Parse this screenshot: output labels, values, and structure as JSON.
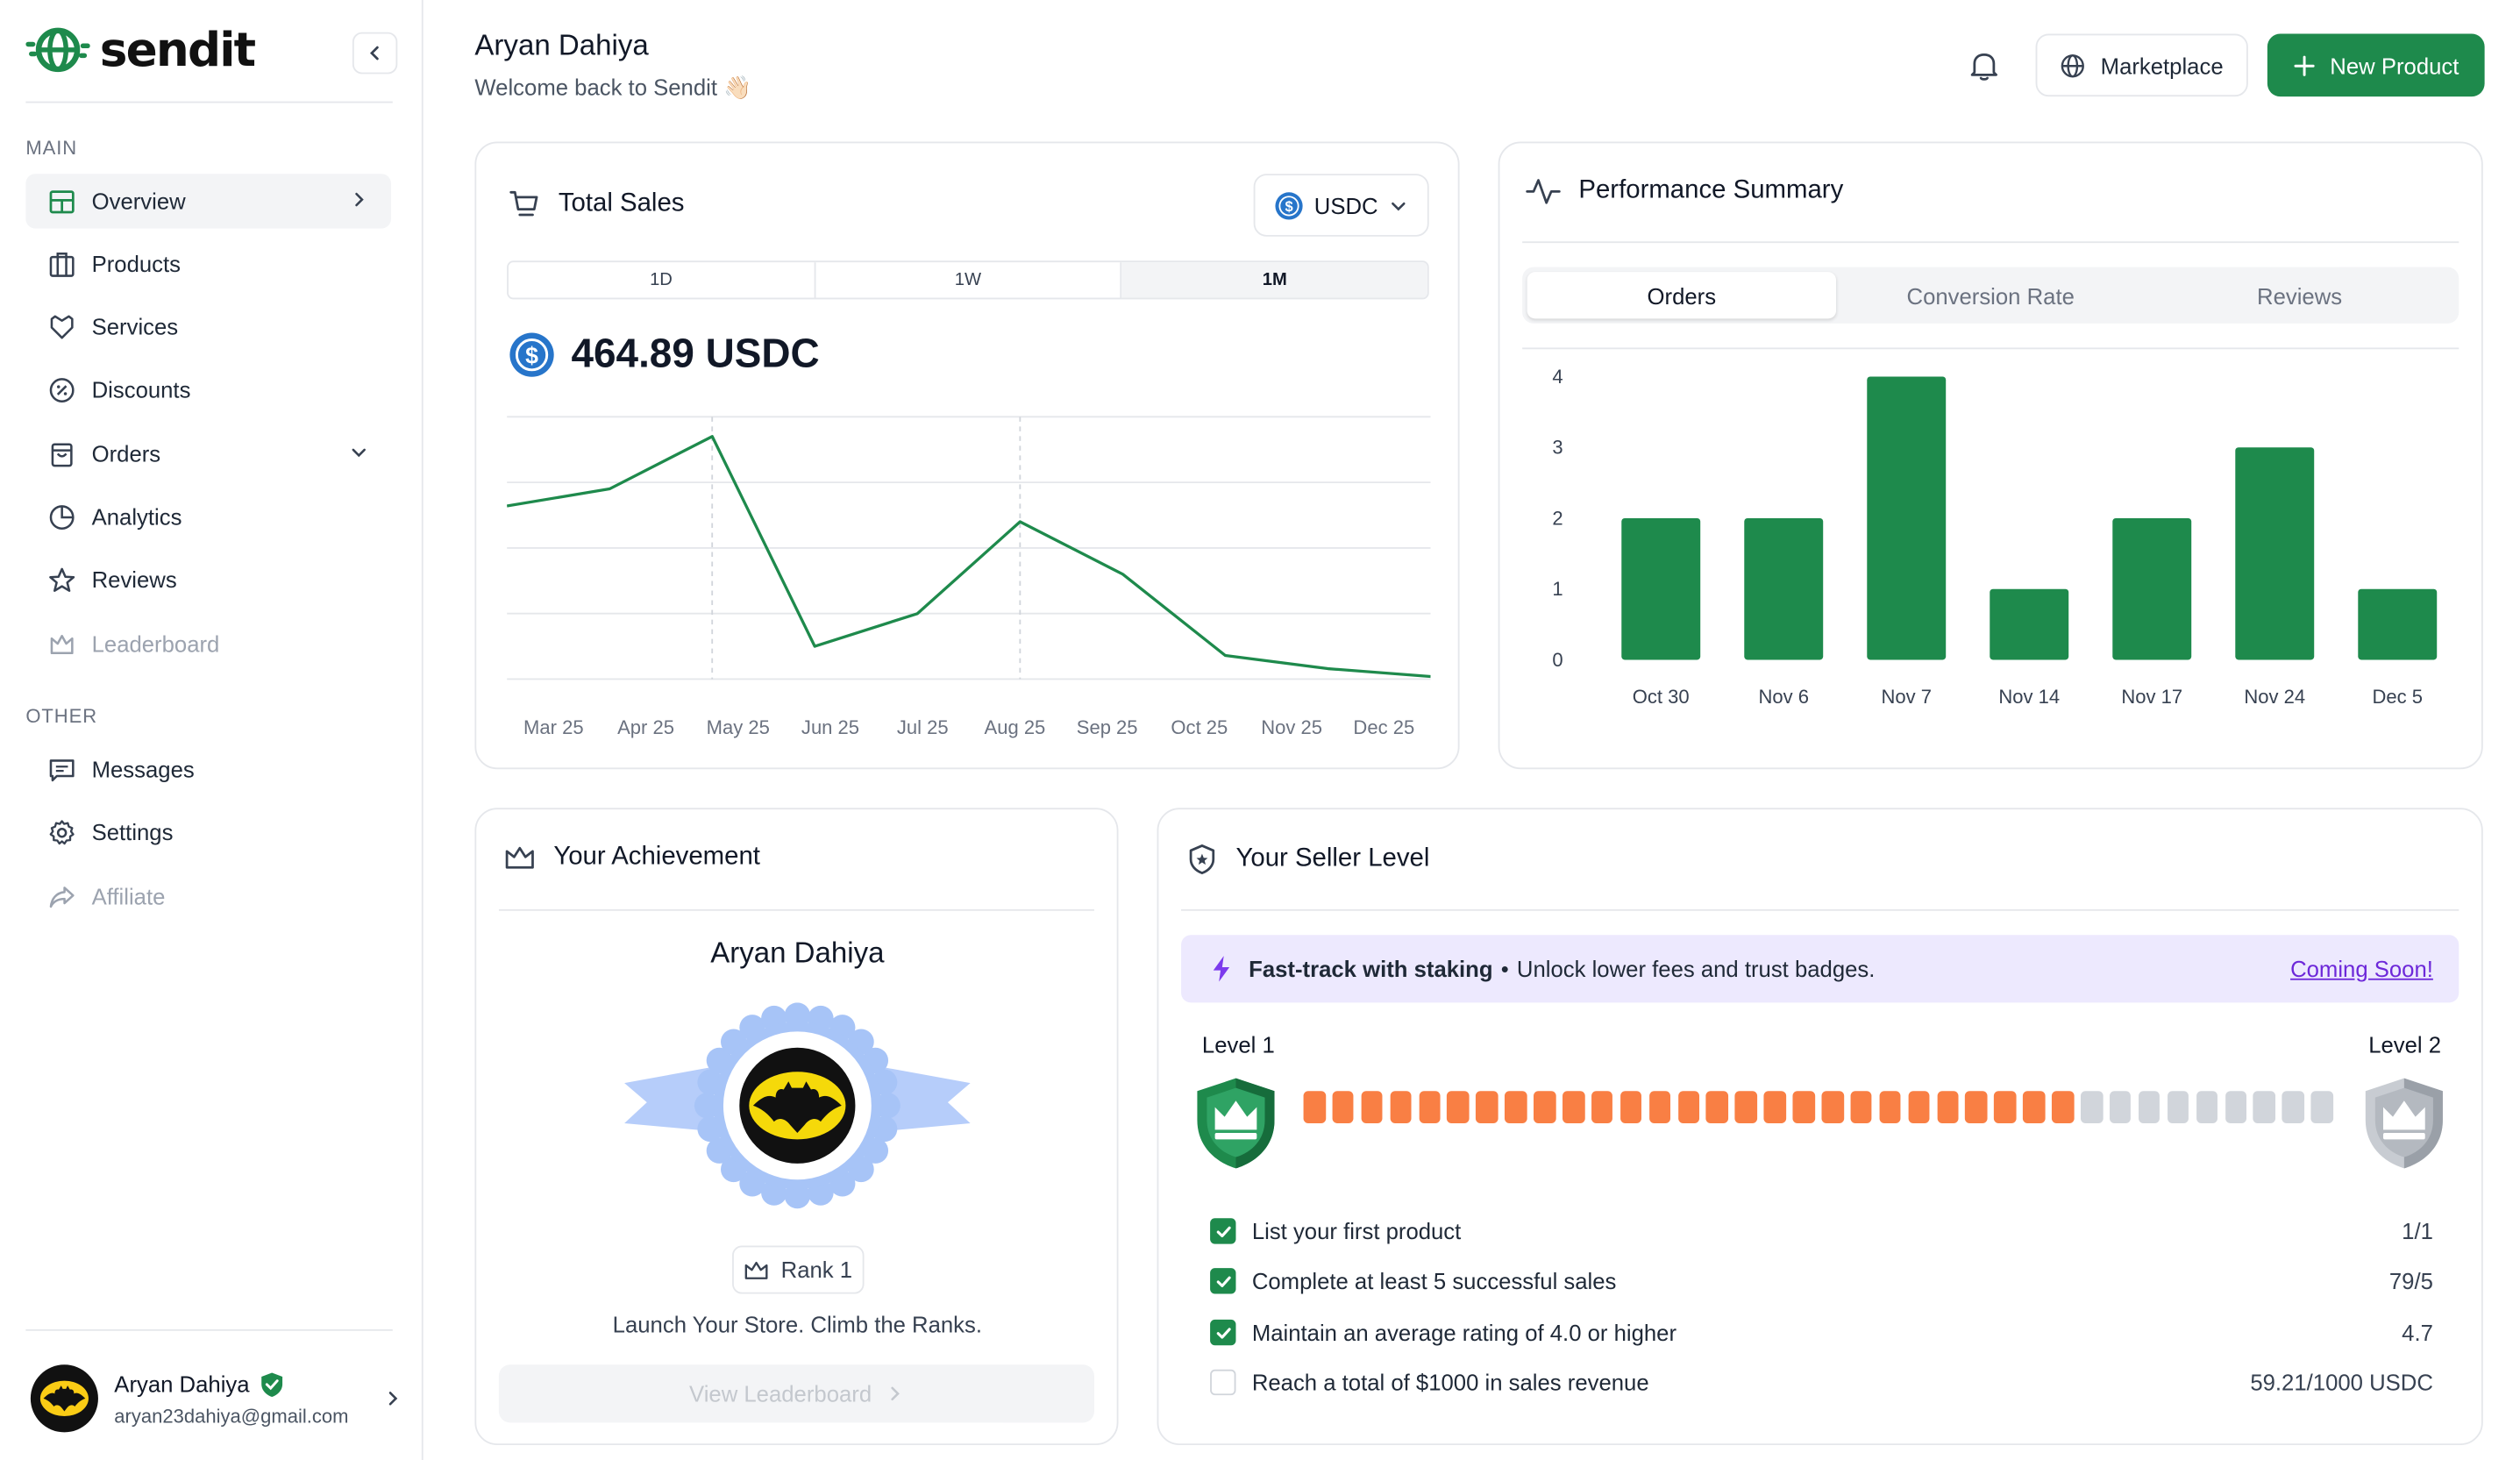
{
  "brand": {
    "name": "sendit"
  },
  "sidebar": {
    "main_label": "MAIN",
    "other_label": "OTHER",
    "main_items": [
      {
        "label": "Overview",
        "icon": "layout-grid-icon",
        "active": true
      },
      {
        "label": "Products",
        "icon": "building-icon"
      },
      {
        "label": "Services",
        "icon": "tag-icon"
      },
      {
        "label": "Discounts",
        "icon": "discount-badge-icon"
      },
      {
        "label": "Orders",
        "icon": "shopping-bag-icon"
      },
      {
        "label": "Analytics",
        "icon": "pie-chart-icon"
      },
      {
        "label": "Reviews",
        "icon": "star-icon"
      },
      {
        "label": "Leaderboard",
        "icon": "crown-icon",
        "disabled": true
      }
    ],
    "other_items": [
      {
        "label": "Messages",
        "icon": "message-square-icon"
      },
      {
        "label": "Settings",
        "icon": "gear-icon"
      },
      {
        "label": "Affiliate",
        "icon": "share-icon",
        "disabled": true
      }
    ],
    "user": {
      "name": "Aryan Dahiya",
      "email": "aryan23dahiya@gmail.com"
    }
  },
  "header": {
    "name": "Aryan Dahiya",
    "welcome": "Welcome back to Sendit 👋🏻",
    "marketplace_label": "Marketplace",
    "new_product_label": "New Product"
  },
  "total_sales": {
    "title": "Total Sales",
    "currency": "USDC",
    "ranges": [
      "1D",
      "1W",
      "1M"
    ],
    "active_range": "1M",
    "amount": "464.89 USDC",
    "chart_data": {
      "type": "line",
      "x": [
        "Mar 25",
        "Apr 25",
        "May 25",
        "Jun 25",
        "Jul 25",
        "Aug 25",
        "Sep 25",
        "Oct 25",
        "Nov 25",
        "Dec 25"
      ],
      "values": [
        132,
        145,
        185,
        25,
        50,
        120,
        80,
        18,
        8,
        2
      ],
      "ylim": [
        0,
        200
      ],
      "grid": true,
      "color": "#1e8a4c"
    }
  },
  "performance": {
    "title": "Performance Summary",
    "tabs": [
      "Orders",
      "Conversion Rate",
      "Reviews"
    ],
    "active_tab": "Orders",
    "chart_data": {
      "type": "bar",
      "categories": [
        "Oct 30",
        "Nov 6",
        "Nov 7",
        "Nov 14",
        "Nov 17",
        "Nov 24",
        "Dec 5"
      ],
      "values": [
        2,
        2,
        4,
        1,
        2,
        3,
        1
      ],
      "y_ticks": [
        0,
        1,
        2,
        3,
        4
      ],
      "ylim": [
        0,
        4
      ],
      "color": "#1e8a4c"
    }
  },
  "achievement": {
    "title": "Your Achievement",
    "name": "Aryan Dahiya",
    "rank": "Rank 1",
    "tagline": "Launch Your Store. Climb the Ranks.",
    "cta": "View Leaderboard"
  },
  "seller_level": {
    "title": "Your Seller Level",
    "banner_bold": "Fast-track with staking",
    "banner_bullet": "•",
    "banner_text": "Unlock lower fees and trust badges.",
    "banner_link": "Coming Soon!",
    "level_from": "Level 1",
    "level_to": "Level 2",
    "progress_filled": 27,
    "progress_total": 36,
    "tasks": [
      {
        "label": "List your first product",
        "value": "1/1",
        "done": true
      },
      {
        "label": "Complete at least 5 successful sales",
        "value": "79/5",
        "done": true
      },
      {
        "label": "Maintain an average rating of 4.0 or higher",
        "value": "4.7",
        "done": true
      },
      {
        "label": "Reach a total of $1000 in sales revenue",
        "value": "59.21/1000 USDC",
        "done": false
      }
    ]
  },
  "colors": {
    "brand_green": "#1e8a4c",
    "progress_orange": "#f97f44",
    "banner_purple": "#ede9fe",
    "link_purple": "#6d28d9"
  }
}
